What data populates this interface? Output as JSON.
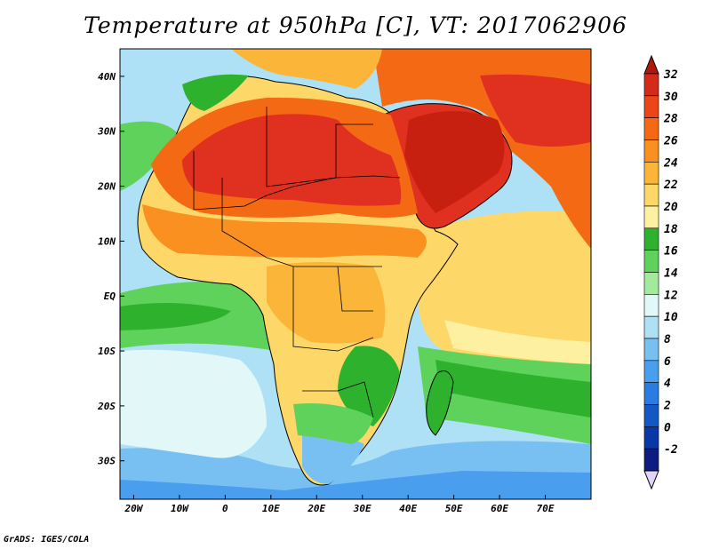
{
  "title": "Temperature at 950hPa [C], VT: 2017062906",
  "credit": "GrADS: IGES/COLA",
  "map": {
    "lon_range": [
      -23,
      80
    ],
    "lat_range": [
      -37,
      45
    ],
    "lon_ticks": [
      {
        "value": -20,
        "label": "20W"
      },
      {
        "value": -10,
        "label": "10W"
      },
      {
        "value": 0,
        "label": "0"
      },
      {
        "value": 10,
        "label": "10E"
      },
      {
        "value": 20,
        "label": "20E"
      },
      {
        "value": 30,
        "label": "30E"
      },
      {
        "value": 40,
        "label": "40E"
      },
      {
        "value": 50,
        "label": "50E"
      },
      {
        "value": 60,
        "label": "60E"
      },
      {
        "value": 70,
        "label": "70E"
      }
    ],
    "lat_ticks": [
      {
        "value": 40,
        "label": "40N"
      },
      {
        "value": 30,
        "label": "30N"
      },
      {
        "value": 20,
        "label": "20N"
      },
      {
        "value": 10,
        "label": "10N"
      },
      {
        "value": 0,
        "label": "EQ"
      },
      {
        "value": -10,
        "label": "10S"
      },
      {
        "value": -20,
        "label": "20S"
      },
      {
        "value": -30,
        "label": "30S"
      }
    ]
  },
  "colorbar": {
    "labels": [
      "32",
      "30",
      "28",
      "26",
      "24",
      "22",
      "20",
      "18",
      "16",
      "14",
      "12",
      "10",
      "8",
      "6",
      "4",
      "2",
      "0",
      "-2"
    ],
    "colors_top_to_bottom": [
      "#d42a1a",
      "#ec4518",
      "#f46a14",
      "#f99020",
      "#fbb63a",
      "#fdd868",
      "#fdf0a0",
      "#2eb22e",
      "#5fd25c",
      "#a4ea9c",
      "#e2f8f8",
      "#aee0f6",
      "#78c0f2",
      "#4a9eee",
      "#2a7ce2",
      "#1458c6",
      "#0838a6",
      "#0c1c80"
    ],
    "over_color": "#b0180e",
    "under_color": "#e0d4f8"
  }
}
